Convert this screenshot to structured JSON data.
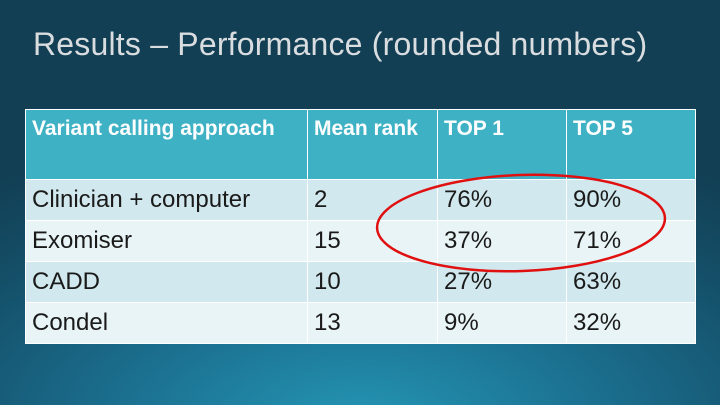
{
  "slide": {
    "title": "Results – Performance (rounded numbers)"
  },
  "table": {
    "headers": [
      "Variant calling approach",
      "Mean rank",
      "TOP 1",
      "TOP 5"
    ],
    "rows": [
      [
        "Clinician + computer",
        "2",
        "76%",
        "90%"
      ],
      [
        "Exomiser",
        "15",
        "37%",
        "71%"
      ],
      [
        "CADD",
        "10",
        "27%",
        "63%"
      ],
      [
        "Condel",
        "13",
        "9%",
        "32%"
      ]
    ]
  },
  "colors": {
    "header_bg": "#3fb1c5",
    "row_odd_bg": "#d1e8ee",
    "row_even_bg": "#e9f4f6",
    "highlight": "#e01010"
  }
}
